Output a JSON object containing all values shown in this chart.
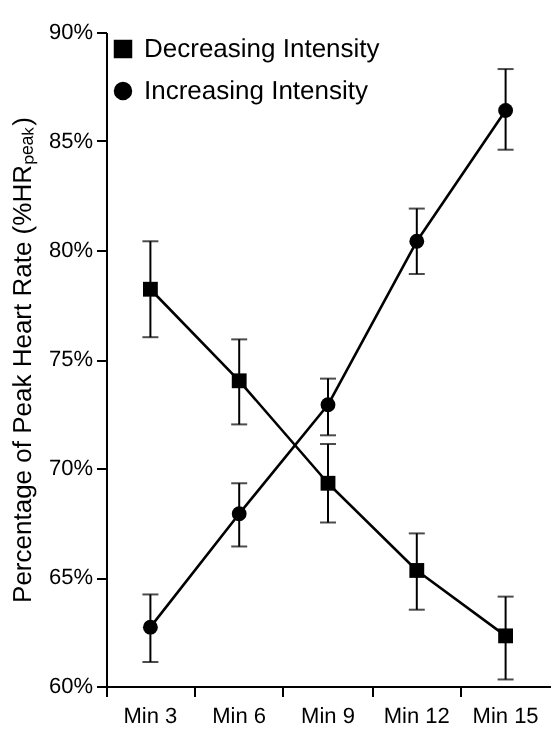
{
  "chart_data": {
    "type": "line",
    "ylabel": "Percentage of Peak Heart Rate (%HRₚₑₐₖ)",
    "categories": [
      "Min 3",
      "Min 6",
      "Min 9",
      "Min 12",
      "Min 15"
    ],
    "series": [
      {
        "name": "Decreasing Intensity",
        "color": "#000000",
        "marker": "square",
        "values": [
          78.2,
          74.0,
          69.3,
          65.3,
          62.3
        ],
        "errors": [
          [
            76.0,
            80.4
          ],
          [
            72.0,
            75.9
          ],
          [
            67.5,
            71.1
          ],
          [
            63.5,
            67.0
          ],
          [
            60.3,
            64.1
          ]
        ]
      },
      {
        "name": "Increasing Intensity",
        "color": "#000000",
        "marker": "circle",
        "values": [
          62.7,
          67.9,
          72.9,
          80.4,
          86.4
        ],
        "errors": [
          [
            61.1,
            64.2
          ],
          [
            66.4,
            69.3
          ],
          [
            71.5,
            74.1
          ],
          [
            78.9,
            81.9
          ],
          [
            84.6,
            88.3
          ]
        ]
      }
    ],
    "ylim": [
      60,
      90
    ],
    "yticks": [
      {
        "value": 60,
        "label": "60%"
      },
      {
        "value": 65,
        "label": "65%"
      },
      {
        "value": 70,
        "label": "70%"
      },
      {
        "value": 75,
        "label": "75%"
      },
      {
        "value": 80,
        "label": "80%"
      },
      {
        "value": 85,
        "label": "85%"
      },
      {
        "value": 90,
        "label": "90%"
      }
    ],
    "grid": false,
    "legend": "top left",
    "line_style": "solid"
  }
}
